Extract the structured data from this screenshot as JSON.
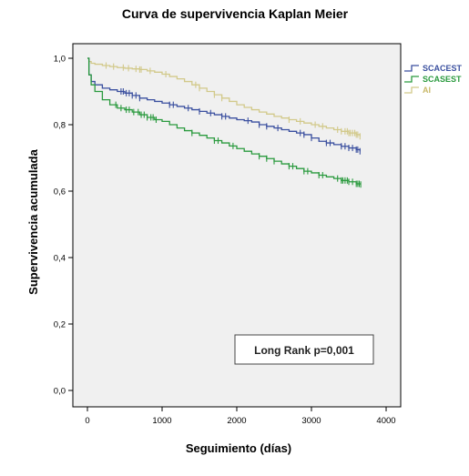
{
  "chart_data": {
    "type": "line",
    "subtype": "kaplan-meier-step",
    "title": "Curva de supervivencia Kaplan Meier",
    "xlabel": "Seguimiento (días)",
    "ylabel": "Supervivencia acumulada",
    "xlim": [
      0,
      4000
    ],
    "ylim": [
      0,
      1.0
    ],
    "xticks": [
      0,
      1000,
      2000,
      3000,
      4000
    ],
    "xtick_labels": [
      "0",
      "1000",
      "2000",
      "3000",
      "4000"
    ],
    "yticks": [
      0,
      0.2,
      0.4,
      0.6,
      0.8,
      1.0
    ],
    "ytick_labels": [
      "0,0",
      "0,2",
      "0,4",
      "0,6",
      "0,8",
      "1,0"
    ],
    "grid": false,
    "legend_position": "right",
    "annotation": "Long Rank p=0,001",
    "series": [
      {
        "name": "SCACEST",
        "color": "#3a4f9f",
        "x": [
          0,
          20,
          50,
          100,
          200,
          300,
          400,
          500,
          600,
          700,
          800,
          900,
          1000,
          1100,
          1200,
          1300,
          1400,
          1500,
          1600,
          1700,
          1800,
          1900,
          2000,
          2100,
          2200,
          2300,
          2400,
          2500,
          2600,
          2700,
          2800,
          2900,
          3000,
          3100,
          3200,
          3300,
          3400,
          3500,
          3600,
          3650
        ],
        "y": [
          1.0,
          0.95,
          0.93,
          0.92,
          0.91,
          0.905,
          0.9,
          0.895,
          0.888,
          0.88,
          0.875,
          0.87,
          0.865,
          0.86,
          0.855,
          0.85,
          0.845,
          0.84,
          0.835,
          0.83,
          0.825,
          0.82,
          0.815,
          0.812,
          0.808,
          0.8,
          0.795,
          0.79,
          0.785,
          0.78,
          0.775,
          0.77,
          0.76,
          0.75,
          0.745,
          0.74,
          0.735,
          0.73,
          0.725,
          0.72
        ],
        "censor_x": [
          450,
          480,
          520,
          560,
          600,
          650,
          700,
          1100,
          1150,
          1350,
          1500,
          1650,
          1800,
          1850,
          2150,
          2300,
          2400,
          2550,
          2850,
          2900,
          3000,
          3200,
          3250,
          3400,
          3450,
          3500,
          3550,
          3600,
          3620,
          3650
        ]
      },
      {
        "name": "SCASEST",
        "color": "#2a9a3e",
        "x": [
          0,
          20,
          50,
          100,
          200,
          300,
          400,
          500,
          600,
          700,
          800,
          900,
          1000,
          1100,
          1200,
          1300,
          1400,
          1500,
          1600,
          1700,
          1800,
          1900,
          2000,
          2100,
          2200,
          2300,
          2400,
          2500,
          2600,
          2700,
          2800,
          2900,
          3000,
          3100,
          3200,
          3300,
          3400,
          3500,
          3600,
          3650
        ],
        "y": [
          1.0,
          0.95,
          0.92,
          0.9,
          0.875,
          0.86,
          0.85,
          0.845,
          0.838,
          0.83,
          0.822,
          0.815,
          0.81,
          0.8,
          0.79,
          0.782,
          0.775,
          0.768,
          0.76,
          0.752,
          0.745,
          0.736,
          0.728,
          0.72,
          0.712,
          0.705,
          0.698,
          0.69,
          0.682,
          0.675,
          0.668,
          0.66,
          0.655,
          0.648,
          0.643,
          0.638,
          0.632,
          0.628,
          0.622,
          0.62
        ],
        "censor_x": [
          380,
          450,
          520,
          560,
          620,
          680,
          720,
          760,
          800,
          850,
          880,
          920,
          1400,
          1700,
          1750,
          1950,
          2300,
          2400,
          2500,
          2700,
          2750,
          2900,
          2950,
          3100,
          3150,
          3350,
          3400,
          3420,
          3450,
          3480,
          3500,
          3550,
          3600,
          3620,
          3640,
          3660
        ]
      },
      {
        "name": "AI",
        "color": "#d2c98a",
        "x": [
          0,
          20,
          50,
          100,
          200,
          300,
          400,
          500,
          600,
          700,
          800,
          900,
          1000,
          1100,
          1200,
          1300,
          1400,
          1500,
          1600,
          1700,
          1800,
          1900,
          2000,
          2100,
          2200,
          2300,
          2400,
          2500,
          2600,
          2700,
          2800,
          2900,
          3000,
          3100,
          3200,
          3300,
          3400,
          3500,
          3600,
          3650
        ],
        "y": [
          1.0,
          0.99,
          0.985,
          0.982,
          0.978,
          0.975,
          0.972,
          0.97,
          0.968,
          0.966,
          0.962,
          0.958,
          0.952,
          0.945,
          0.938,
          0.93,
          0.92,
          0.91,
          0.9,
          0.89,
          0.88,
          0.87,
          0.86,
          0.852,
          0.845,
          0.838,
          0.832,
          0.825,
          0.82,
          0.815,
          0.81,
          0.805,
          0.8,
          0.795,
          0.79,
          0.785,
          0.78,
          0.775,
          0.77,
          0.765
        ],
        "censor_x": [
          250,
          350,
          480,
          550,
          650,
          700,
          720,
          840,
          1050,
          1450,
          1500,
          1700,
          1800,
          2700,
          2850,
          3050,
          3150,
          3350,
          3400,
          3450,
          3480,
          3500,
          3520,
          3550,
          3580,
          3600,
          3620,
          3650
        ]
      }
    ]
  }
}
